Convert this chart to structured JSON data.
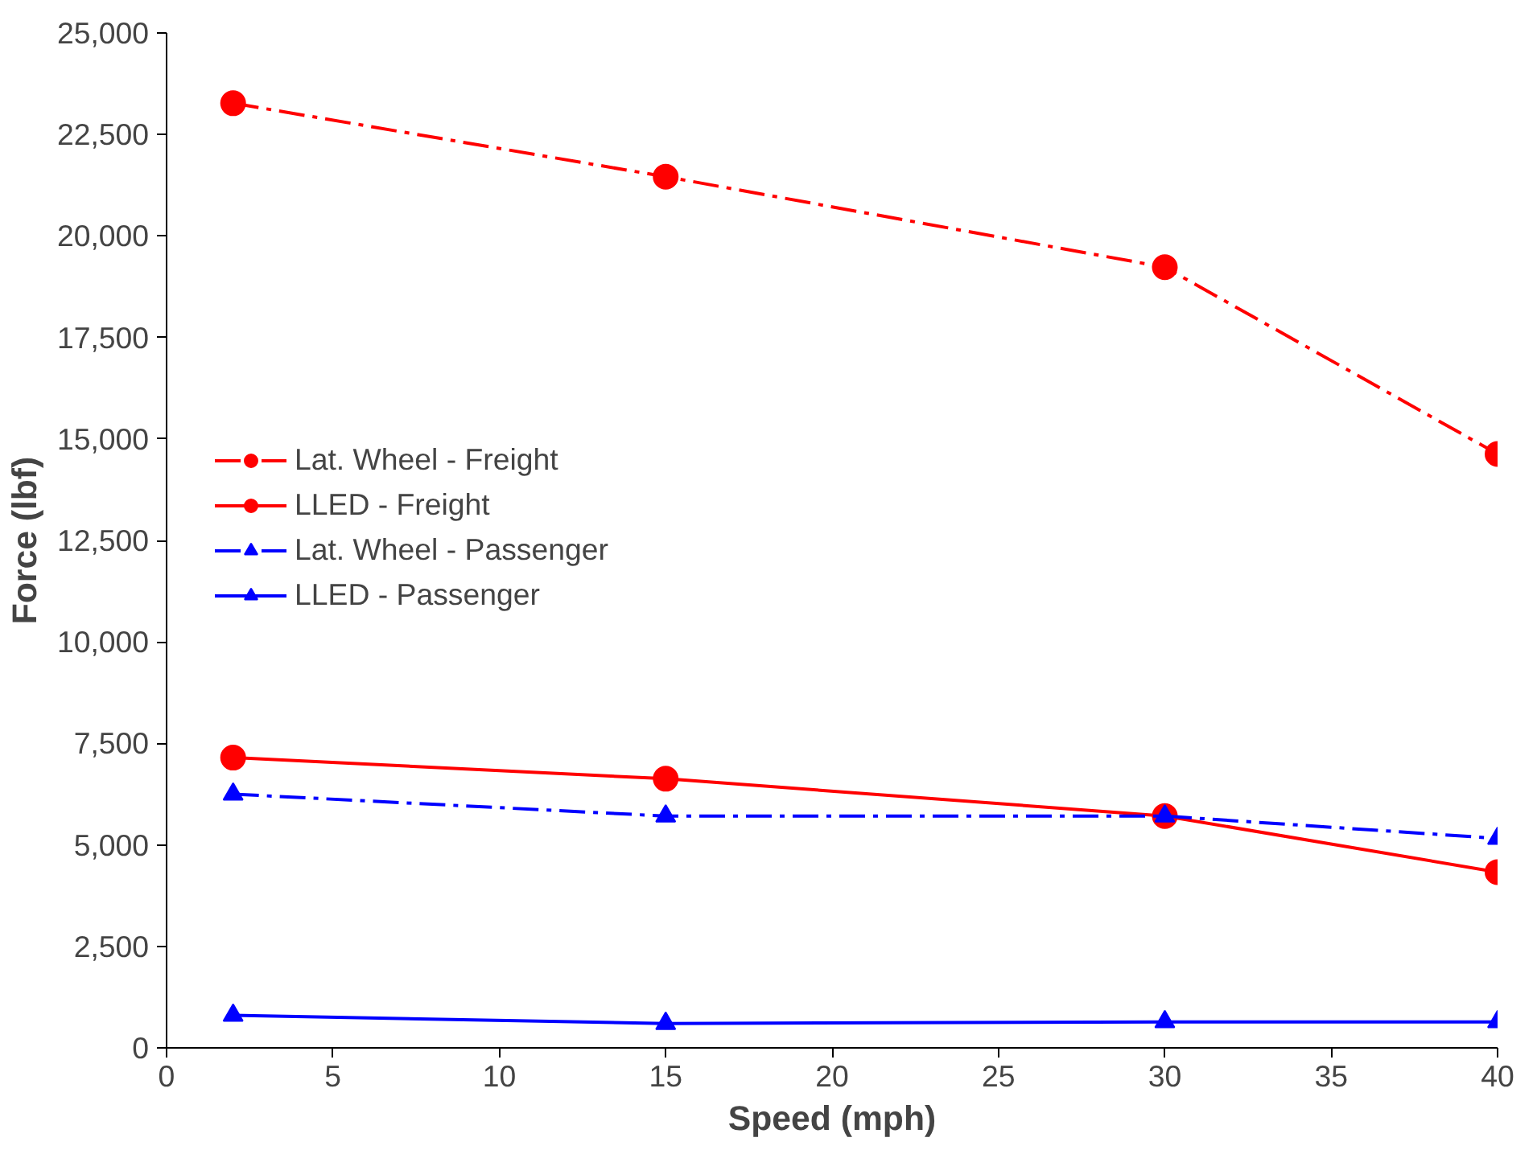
{
  "chart_data": {
    "type": "line",
    "xlabel": "Speed (mph)",
    "ylabel": "Force (lbf)",
    "x": [
      2,
      15,
      30,
      40
    ],
    "series": [
      {
        "name": "Lat. Wheel - Freight",
        "color": "#ff0000",
        "values": [
          23270,
          21460,
          19230,
          14630
        ],
        "marker": "circle",
        "line_style": "dashdot"
      },
      {
        "name": "LLED - Freight",
        "color": "#ff0000",
        "values": [
          7150,
          6630,
          5710,
          4330
        ],
        "marker": "circle",
        "line_style": "solid"
      },
      {
        "name": "Lat. Wheel - Passenger",
        "color": "#0000ff",
        "values": [
          6250,
          5710,
          5710,
          5160
        ],
        "marker": "triangle",
        "line_style": "dashdot"
      },
      {
        "name": "LLED - Passenger",
        "color": "#0000ff",
        "values": [
          800,
          600,
          640,
          640
        ],
        "marker": "triangle",
        "line_style": "solid"
      }
    ],
    "xlim": [
      0,
      40
    ],
    "xticks": [
      0,
      5,
      10,
      15,
      20,
      25,
      30,
      35,
      40
    ],
    "ylim": [
      0,
      25000
    ],
    "yticks": [
      {
        "value": 0,
        "label": "0"
      },
      {
        "value": 2500,
        "label": "2,500"
      },
      {
        "value": 5000,
        "label": "5,000"
      },
      {
        "value": 7500,
        "label": "7,500"
      },
      {
        "value": 10000,
        "label": "10,000"
      },
      {
        "value": 12500,
        "label": "12,500"
      },
      {
        "value": 15000,
        "label": "15,000"
      },
      {
        "value": 17500,
        "label": "17,500"
      },
      {
        "value": 20000,
        "label": "20,000"
      },
      {
        "value": 22500,
        "label": "22,500"
      },
      {
        "value": 25000,
        "label": "25,000"
      }
    ],
    "grid": false,
    "legend": "left"
  }
}
